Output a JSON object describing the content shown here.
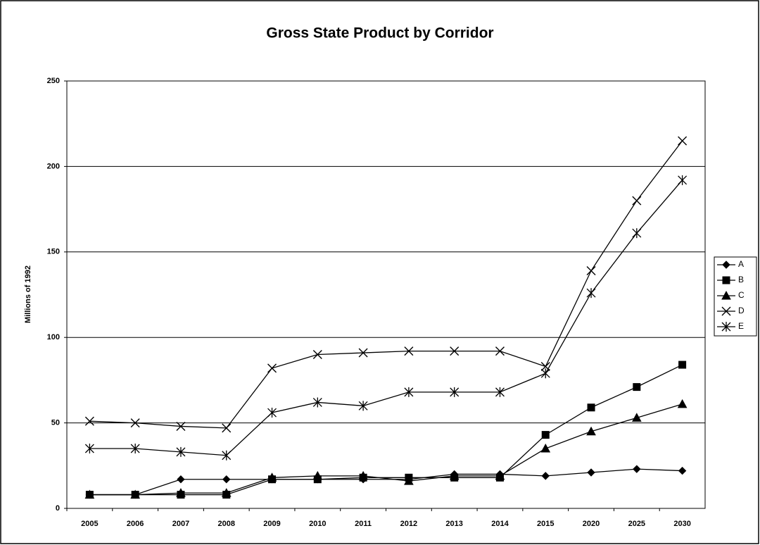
{
  "chart_data": {
    "type": "line",
    "title": "Gross State Product by Corridor",
    "y_label": "Millions of 1992",
    "categories": [
      "2005",
      "2006",
      "2007",
      "2008",
      "2009",
      "2010",
      "2011",
      "2012",
      "2013",
      "2014",
      "2015",
      "2020",
      "2025",
      "2030"
    ],
    "series": [
      {
        "name": "A",
        "color": "#000000",
        "marker": "diamond",
        "values": [
          8,
          8,
          17,
          17,
          17,
          17,
          17,
          17,
          20,
          20,
          19,
          21,
          23,
          22
        ]
      },
      {
        "name": "B",
        "color": "#000000",
        "marker": "square",
        "values": [
          8,
          8,
          8,
          8,
          17,
          17,
          18,
          18,
          18,
          18,
          43,
          59,
          71,
          84
        ]
      },
      {
        "name": "C",
        "color": "#000000",
        "marker": "triangle",
        "values": [
          8,
          8,
          9,
          9,
          18,
          19,
          19,
          16,
          19,
          19,
          35,
          45,
          53,
          61
        ]
      },
      {
        "name": "D",
        "color": "#000000",
        "marker": "x",
        "values": [
          51,
          50,
          48,
          47,
          82,
          90,
          91,
          92,
          92,
          92,
          83,
          139,
          180,
          215
        ]
      },
      {
        "name": "E",
        "color": "#000000",
        "marker": "asterisk",
        "values": [
          35,
          35,
          33,
          31,
          56,
          62,
          60,
          68,
          68,
          68,
          79,
          126,
          161,
          192
        ]
      }
    ],
    "ylim": [
      0,
      250
    ],
    "yticks": [
      0,
      50,
      100,
      150,
      200,
      250
    ],
    "grid": true,
    "legend": "right"
  }
}
